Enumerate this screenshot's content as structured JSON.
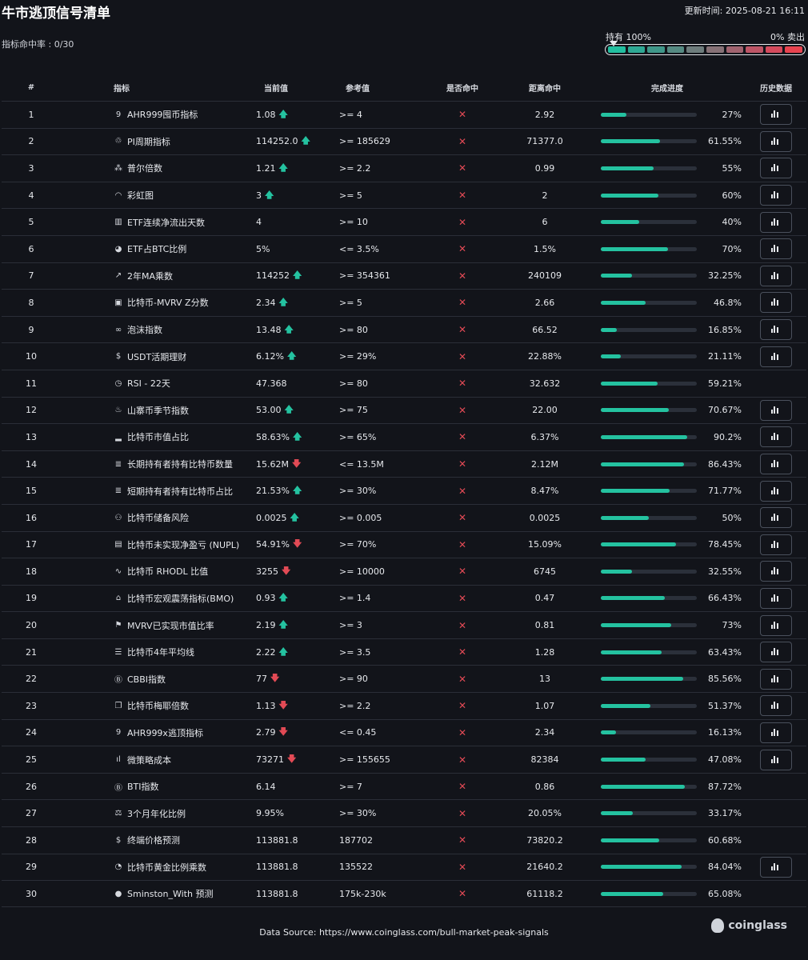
{
  "header": {
    "title": "牛市逃顶信号清单",
    "updated": "更新时间: 2025-08-21 16:11",
    "hit_rate": "指标命中率 : 0/30",
    "gauge_left": "持有 100%",
    "gauge_right": "0% 卖出"
  },
  "colors": {
    "background": "#12141a",
    "progress": "#24c2a0",
    "up": "#24c2a0",
    "down": "#e24a55",
    "gauge_segments": [
      "#22bfa0",
      "#2ea894",
      "#3f9789",
      "#558a82",
      "#6d7c7c",
      "#867176",
      "#a0636f",
      "#bd5566",
      "#d44a5c",
      "#e8434f"
    ]
  },
  "columns": {
    "num": "#",
    "name": "指标",
    "current": "当前值",
    "reference": "参考值",
    "hit": "是否命中",
    "distance": "距离命中",
    "progress": "完成进度",
    "history": "历史数据"
  },
  "rows": [
    {
      "num": "1",
      "icon": "ahr999-icon",
      "glyph": "9",
      "name": "AHR999囤币指标",
      "current": "1.08",
      "trend": "up",
      "ref": ">= 4",
      "hit": "✕",
      "dist": "2.92",
      "pct": "27%",
      "progress": 27,
      "history": true
    },
    {
      "num": "2",
      "icon": "pi-cycle-icon",
      "glyph": "♲",
      "name": "PI周期指标",
      "current": "114252.0",
      "trend": "up",
      "ref": ">= 185629",
      "hit": "✕",
      "dist": "71377.0",
      "pct": "61.55%",
      "progress": 61.55,
      "history": true
    },
    {
      "num": "3",
      "icon": "puell-icon",
      "glyph": "⁂",
      "name": "普尔倍数",
      "current": "1.21",
      "trend": "up",
      "ref": ">= 2.2",
      "hit": "✕",
      "dist": "0.99",
      "pct": "55%",
      "progress": 55,
      "history": true
    },
    {
      "num": "4",
      "icon": "rainbow-icon",
      "glyph": "◠",
      "name": "彩虹图",
      "current": "3",
      "trend": "up",
      "ref": ">= 5",
      "hit": "✕",
      "dist": "2",
      "pct": "60%",
      "progress": 60,
      "history": true
    },
    {
      "num": "5",
      "icon": "etf-flow-icon",
      "glyph": "▥",
      "name": "ETF连续净流出天数",
      "current": "4",
      "trend": "",
      "ref": ">= 10",
      "hit": "✕",
      "dist": "6",
      "pct": "40%",
      "progress": 40,
      "history": true
    },
    {
      "num": "6",
      "icon": "pie-icon",
      "glyph": "◕",
      "name": "ETF占BTC比例",
      "current": "5%",
      "trend": "",
      "ref": "<= 3.5%",
      "hit": "✕",
      "dist": "1.5%",
      "pct": "70%",
      "progress": 70,
      "history": true
    },
    {
      "num": "7",
      "icon": "line-chart-icon",
      "glyph": "↗",
      "name": "2年MA乘数",
      "current": "114252",
      "trend": "up",
      "ref": ">= 354361",
      "hit": "✕",
      "dist": "240109",
      "pct": "32.25%",
      "progress": 32.25,
      "history": true
    },
    {
      "num": "8",
      "icon": "calendar-icon",
      "glyph": "▣",
      "name": "比特币-MVRV Z分数",
      "current": "2.34",
      "trend": "up",
      "ref": ">= 5",
      "hit": "✕",
      "dist": "2.66",
      "pct": "46.8%",
      "progress": 46.8,
      "history": true
    },
    {
      "num": "9",
      "icon": "bubble-icon",
      "glyph": "∞",
      "name": "泡沫指数",
      "current": "13.48",
      "trend": "up",
      "ref": ">= 80",
      "hit": "✕",
      "dist": "66.52",
      "pct": "16.85%",
      "progress": 16.85,
      "history": true
    },
    {
      "num": "10",
      "icon": "dollar-icon",
      "glyph": "$",
      "name": "USDT活期理财",
      "current": "6.12%",
      "trend": "up",
      "ref": ">= 29%",
      "hit": "✕",
      "dist": "22.88%",
      "pct": "21.11%",
      "progress": 21.11,
      "history": true
    },
    {
      "num": "11",
      "icon": "clock-icon",
      "glyph": "◷",
      "name": "RSI - 22天",
      "current": "47.368",
      "trend": "",
      "ref": ">= 80",
      "hit": "✕",
      "dist": "32.632",
      "pct": "59.21%",
      "progress": 59.21,
      "history": false
    },
    {
      "num": "12",
      "icon": "flame-icon",
      "glyph": "♨",
      "name": "山寨币季节指数",
      "current": "53.00",
      "trend": "up",
      "ref": ">= 75",
      "hit": "✕",
      "dist": "22.00",
      "pct": "70.67%",
      "progress": 70.67,
      "history": true
    },
    {
      "num": "13",
      "icon": "bar-chart-icon",
      "glyph": "▂",
      "name": "比特币市值占比",
      "current": "58.63%",
      "trend": "up",
      "ref": ">= 65%",
      "hit": "✕",
      "dist": "6.37%",
      "pct": "90.2%",
      "progress": 90.2,
      "history": true
    },
    {
      "num": "14",
      "icon": "database-icon",
      "glyph": "≣",
      "name": "长期持有者持有比特币数量",
      "current": "15.62M",
      "trend": "down",
      "ref": "<= 13.5M",
      "hit": "✕",
      "dist": "2.12M",
      "pct": "86.43%",
      "progress": 86.43,
      "history": true
    },
    {
      "num": "15",
      "icon": "database-icon",
      "glyph": "≣",
      "name": "短期持有者持有比特币占比",
      "current": "21.53%",
      "trend": "up",
      "ref": ">= 30%",
      "hit": "✕",
      "dist": "8.47%",
      "pct": "71.77%",
      "progress": 71.77,
      "history": true
    },
    {
      "num": "16",
      "icon": "coins-icon",
      "glyph": "⚇",
      "name": "比特币储备风险",
      "current": "0.0025",
      "trend": "up",
      "ref": ">= 0.005",
      "hit": "✕",
      "dist": "0.0025",
      "pct": "50%",
      "progress": 50,
      "history": true
    },
    {
      "num": "17",
      "icon": "clipboard-icon",
      "glyph": "▤",
      "name": "比特币未实现净盈亏 (NUPL)",
      "current": "54.91%",
      "trend": "down",
      "ref": ">= 70%",
      "hit": "✕",
      "dist": "15.09%",
      "pct": "78.45%",
      "progress": 78.45,
      "history": true
    },
    {
      "num": "18",
      "icon": "pulse-icon",
      "glyph": "∿",
      "name": "比特币 RHODL 比值",
      "current": "3255",
      "trend": "down",
      "ref": ">= 10000",
      "hit": "✕",
      "dist": "6745",
      "pct": "32.55%",
      "progress": 32.55,
      "history": true
    },
    {
      "num": "19",
      "icon": "scale-icon",
      "glyph": "⌂",
      "name": "比特币宏观震荡指标(BMO)",
      "current": "0.93",
      "trend": "up",
      "ref": ">= 1.4",
      "hit": "✕",
      "dist": "0.47",
      "pct": "66.43%",
      "progress": 66.43,
      "history": true
    },
    {
      "num": "20",
      "icon": "flag-icon",
      "glyph": "⚑",
      "name": "MVRV已实现市值比率",
      "current": "2.19",
      "trend": "up",
      "ref": ">= 3",
      "hit": "✕",
      "dist": "0.81",
      "pct": "73%",
      "progress": 73,
      "history": true
    },
    {
      "num": "21",
      "icon": "list-icon",
      "glyph": "☰",
      "name": "比特币4年平均线",
      "current": "2.22",
      "trend": "up",
      "ref": ">= 3.5",
      "hit": "✕",
      "dist": "1.28",
      "pct": "63.43%",
      "progress": 63.43,
      "history": true
    },
    {
      "num": "22",
      "icon": "bitcoin-icon",
      "glyph": "Ⓑ",
      "name": "CBBI指数",
      "current": "77",
      "trend": "down",
      "ref": ">= 90",
      "hit": "✕",
      "dist": "13",
      "pct": "85.56%",
      "progress": 85.56,
      "history": true
    },
    {
      "num": "23",
      "icon": "copy-icon",
      "glyph": "❐",
      "name": "比特币梅耶倍数",
      "current": "1.13",
      "trend": "down",
      "ref": ">= 2.2",
      "hit": "✕",
      "dist": "1.07",
      "pct": "51.37%",
      "progress": 51.37,
      "history": true
    },
    {
      "num": "24",
      "icon": "ahr999-icon",
      "glyph": "9",
      "name": "AHR999x逃顶指标",
      "current": "2.79",
      "trend": "down",
      "ref": "<= 0.45",
      "hit": "✕",
      "dist": "2.34",
      "pct": "16.13%",
      "progress": 16.13,
      "history": true
    },
    {
      "num": "25",
      "icon": "signal-icon",
      "glyph": "ıl",
      "name": "微策略成本",
      "current": "73271",
      "trend": "down",
      "ref": ">= 155655",
      "hit": "✕",
      "dist": "82384",
      "pct": "47.08%",
      "progress": 47.08,
      "history": true
    },
    {
      "num": "26",
      "icon": "bitcoin-icon",
      "glyph": "Ⓑ",
      "name": "BTI指数",
      "current": "6.14",
      "trend": "",
      "ref": ">= 7",
      "hit": "✕",
      "dist": "0.86",
      "pct": "87.72%",
      "progress": 87.72,
      "history": false
    },
    {
      "num": "27",
      "icon": "balance-icon",
      "glyph": "⚖",
      "name": "3个月年化比例",
      "current": "9.95%",
      "trend": "",
      "ref": ">= 30%",
      "hit": "✕",
      "dist": "20.05%",
      "pct": "33.17%",
      "progress": 33.17,
      "history": false
    },
    {
      "num": "28",
      "icon": "price-icon",
      "glyph": "$",
      "name": "终端价格预测",
      "current": "113881.8",
      "trend": "",
      "ref": "187702",
      "hit": "✕",
      "dist": "73820.2",
      "pct": "60.68%",
      "progress": 60.68,
      "history": false
    },
    {
      "num": "29",
      "icon": "gauge-icon",
      "glyph": "◔",
      "name": "比特币黄金比例乘数",
      "current": "113881.8",
      "trend": "",
      "ref": "135522",
      "hit": "✕",
      "dist": "21640.2",
      "pct": "84.04%",
      "progress": 84.04,
      "history": true
    },
    {
      "num": "30",
      "icon": "bitcoin-filled-icon",
      "glyph": "●",
      "name": "Sminston_With 预测",
      "current": "113881.8",
      "trend": "",
      "ref": "175k-230k",
      "hit": "✕",
      "dist": "61118.2",
      "pct": "65.08%",
      "progress": 65.08,
      "history": false
    }
  ],
  "footer": {
    "source": "Data Source: https://www.coinglass.com/bull-market-peak-signals",
    "brand": "coinglass"
  }
}
